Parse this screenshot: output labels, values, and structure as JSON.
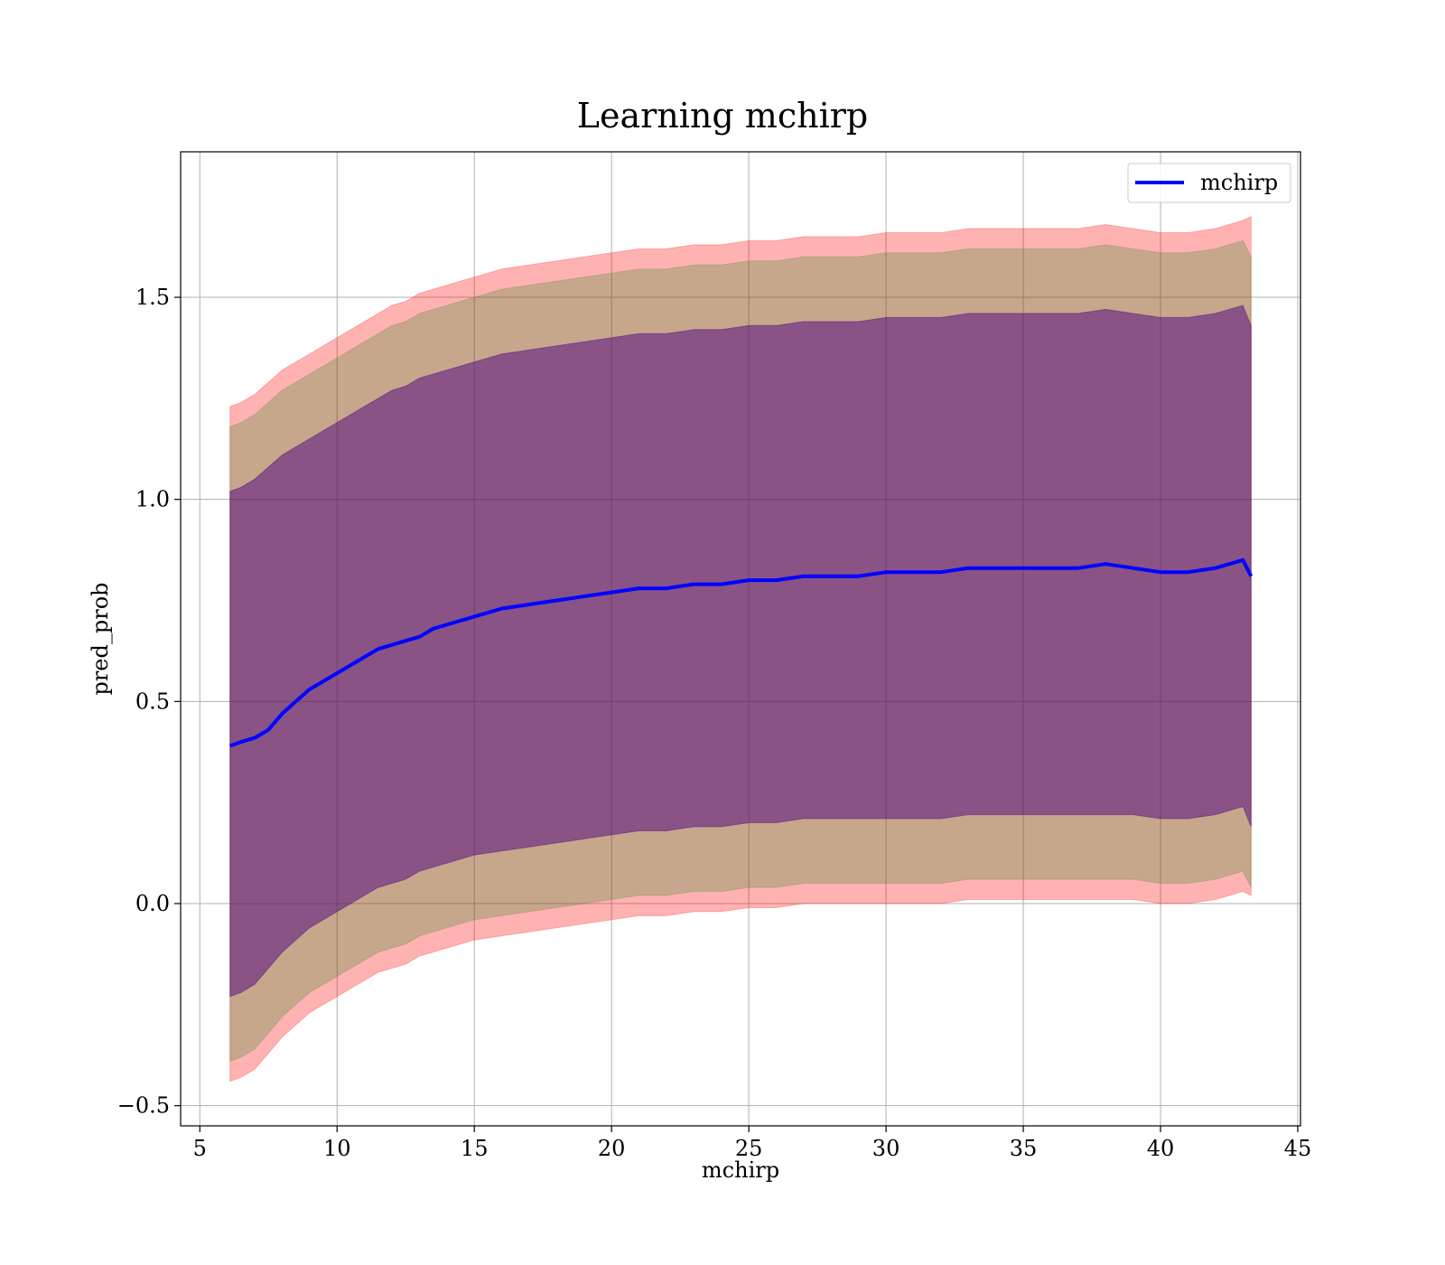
{
  "chart_data": {
    "type": "line",
    "title": "Learning mchirp",
    "xlabel": "mchirp",
    "ylabel": "pred_prob",
    "xlim": [
      4.3,
      45.1
    ],
    "ylim": [
      -0.55,
      1.86
    ],
    "xticks": [
      5,
      10,
      15,
      20,
      25,
      30,
      35,
      40,
      45
    ],
    "yticks": [
      -0.5,
      0.0,
      0.5,
      1.0,
      1.5
    ],
    "xtick_labels": [
      "5",
      "10",
      "15",
      "20",
      "25",
      "30",
      "35",
      "40",
      "45"
    ],
    "ytick_labels": [
      "−0.5",
      "0.0",
      "0.5",
      "1.0",
      "1.5"
    ],
    "grid": true,
    "legend_position": "top-right",
    "series": [
      {
        "name": "mchirp",
        "color": "#0000ff",
        "x": [
          6.1,
          6.5,
          7.0,
          7.5,
          8.0,
          8.5,
          9.0,
          9.5,
          10.0,
          10.5,
          11.0,
          11.5,
          12.0,
          12.5,
          13.0,
          13.5,
          14.0,
          14.5,
          15.0,
          16.0,
          17.0,
          18.0,
          19.0,
          20.0,
          21.0,
          22.0,
          23.0,
          24.0,
          25.0,
          26.0,
          27.0,
          28.0,
          29.0,
          30.0,
          31.0,
          32.0,
          33.0,
          34.0,
          35.0,
          36.0,
          37.0,
          38.0,
          39.0,
          40.0,
          41.0,
          42.0,
          43.0,
          43.3
        ],
        "y": [
          0.39,
          0.4,
          0.41,
          0.43,
          0.47,
          0.5,
          0.53,
          0.55,
          0.57,
          0.59,
          0.61,
          0.63,
          0.64,
          0.65,
          0.66,
          0.68,
          0.69,
          0.7,
          0.71,
          0.73,
          0.74,
          0.75,
          0.76,
          0.77,
          0.78,
          0.78,
          0.79,
          0.79,
          0.8,
          0.8,
          0.81,
          0.81,
          0.81,
          0.82,
          0.82,
          0.82,
          0.83,
          0.83,
          0.83,
          0.83,
          0.83,
          0.84,
          0.83,
          0.82,
          0.82,
          0.83,
          0.85,
          0.81
        ]
      }
    ],
    "bands": [
      {
        "color": "#ff0000",
        "opacity": 0.3,
        "upper": [
          1.23,
          1.24,
          1.26,
          1.29,
          1.32,
          1.34,
          1.36,
          1.38,
          1.4,
          1.42,
          1.44,
          1.46,
          1.48,
          1.49,
          1.51,
          1.52,
          1.53,
          1.54,
          1.55,
          1.57,
          1.58,
          1.59,
          1.6,
          1.61,
          1.62,
          1.62,
          1.63,
          1.63,
          1.64,
          1.64,
          1.65,
          1.65,
          1.65,
          1.66,
          1.66,
          1.66,
          1.67,
          1.67,
          1.67,
          1.67,
          1.67,
          1.68,
          1.67,
          1.66,
          1.66,
          1.67,
          1.69,
          1.7
        ],
        "lower": [
          -0.44,
          -0.43,
          -0.41,
          -0.37,
          -0.33,
          -0.3,
          -0.27,
          -0.25,
          -0.23,
          -0.21,
          -0.19,
          -0.17,
          -0.16,
          -0.15,
          -0.13,
          -0.12,
          -0.11,
          -0.1,
          -0.09,
          -0.08,
          -0.07,
          -0.06,
          -0.05,
          -0.04,
          -0.03,
          -0.03,
          -0.02,
          -0.02,
          -0.01,
          -0.01,
          0.0,
          0.0,
          0.0,
          0.0,
          0.0,
          0.0,
          0.01,
          0.01,
          0.01,
          0.01,
          0.01,
          0.01,
          0.01,
          0.0,
          0.0,
          0.01,
          0.03,
          0.02
        ]
      },
      {
        "color": "#008000",
        "opacity": 0.22,
        "upper": [
          1.18,
          1.19,
          1.21,
          1.24,
          1.27,
          1.29,
          1.31,
          1.33,
          1.35,
          1.37,
          1.39,
          1.41,
          1.43,
          1.44,
          1.46,
          1.47,
          1.48,
          1.49,
          1.5,
          1.52,
          1.53,
          1.54,
          1.55,
          1.56,
          1.57,
          1.57,
          1.58,
          1.58,
          1.59,
          1.59,
          1.6,
          1.6,
          1.6,
          1.61,
          1.61,
          1.61,
          1.62,
          1.62,
          1.62,
          1.62,
          1.62,
          1.63,
          1.62,
          1.61,
          1.61,
          1.62,
          1.64,
          1.6
        ],
        "lower": [
          -0.39,
          -0.38,
          -0.36,
          -0.32,
          -0.28,
          -0.25,
          -0.22,
          -0.2,
          -0.18,
          -0.16,
          -0.14,
          -0.12,
          -0.11,
          -0.1,
          -0.08,
          -0.07,
          -0.06,
          -0.05,
          -0.04,
          -0.03,
          -0.02,
          -0.01,
          0.0,
          0.01,
          0.02,
          0.02,
          0.03,
          0.03,
          0.04,
          0.04,
          0.05,
          0.05,
          0.05,
          0.05,
          0.05,
          0.05,
          0.06,
          0.06,
          0.06,
          0.06,
          0.06,
          0.06,
          0.06,
          0.05,
          0.05,
          0.06,
          0.08,
          0.04
        ]
      },
      {
        "color": "#4b0082",
        "opacity": 0.5,
        "upper": [
          1.02,
          1.03,
          1.05,
          1.08,
          1.11,
          1.13,
          1.15,
          1.17,
          1.19,
          1.21,
          1.23,
          1.25,
          1.27,
          1.28,
          1.3,
          1.31,
          1.32,
          1.33,
          1.34,
          1.36,
          1.37,
          1.38,
          1.39,
          1.4,
          1.41,
          1.41,
          1.42,
          1.42,
          1.43,
          1.43,
          1.44,
          1.44,
          1.44,
          1.45,
          1.45,
          1.45,
          1.46,
          1.46,
          1.46,
          1.46,
          1.46,
          1.47,
          1.46,
          1.45,
          1.45,
          1.46,
          1.48,
          1.43
        ],
        "lower": [
          -0.23,
          -0.22,
          -0.2,
          -0.16,
          -0.12,
          -0.09,
          -0.06,
          -0.04,
          -0.02,
          0.0,
          0.02,
          0.04,
          0.05,
          0.06,
          0.08,
          0.09,
          0.1,
          0.11,
          0.12,
          0.13,
          0.14,
          0.15,
          0.16,
          0.17,
          0.18,
          0.18,
          0.19,
          0.19,
          0.2,
          0.2,
          0.21,
          0.21,
          0.21,
          0.21,
          0.21,
          0.21,
          0.22,
          0.22,
          0.22,
          0.22,
          0.22,
          0.22,
          0.22,
          0.21,
          0.21,
          0.22,
          0.24,
          0.19
        ]
      }
    ]
  }
}
